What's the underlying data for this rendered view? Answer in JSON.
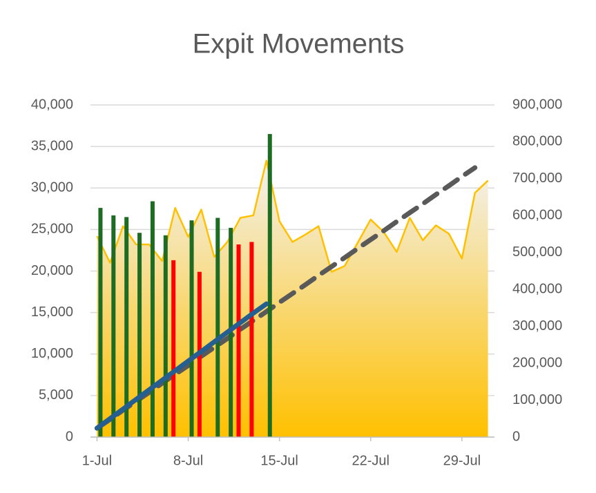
{
  "chart_data": {
    "type": "combo",
    "title": "Expit Movements",
    "x": [
      1,
      2,
      3,
      4,
      5,
      6,
      7,
      8,
      9,
      10,
      11,
      12,
      13,
      14,
      15,
      16,
      17,
      18,
      19,
      20,
      21,
      22,
      23,
      24,
      25,
      26,
      27,
      28,
      29,
      30,
      31
    ],
    "xlim": [
      0.5,
      31.5
    ],
    "xticks": [
      {
        "value": 1,
        "label": "1-Jul"
      },
      {
        "value": 8,
        "label": "8-Jul"
      },
      {
        "value": 15,
        "label": "15-Jul"
      },
      {
        "value": 22,
        "label": "22-Jul"
      },
      {
        "value": 29,
        "label": "29-Jul"
      }
    ],
    "ylim": [
      0,
      40000
    ],
    "yticks": [
      0,
      {
        "value": 5000,
        "label": "5,000"
      },
      {
        "value": 10000,
        "label": "10,000"
      },
      {
        "value": 15000,
        "label": "15,000"
      },
      {
        "value": 20000,
        "label": "20,000"
      },
      {
        "value": 25000,
        "label": "25,000"
      },
      {
        "value": 30000,
        "label": "30,000"
      },
      {
        "value": 35000,
        "label": "35,000"
      },
      {
        "value": 40000,
        "label": "40,000"
      }
    ],
    "y2lim": [
      0,
      900000
    ],
    "y2ticks": [
      0,
      {
        "value": 100000,
        "label": "100,000"
      },
      {
        "value": 200000,
        "label": "200,000"
      },
      {
        "value": 300000,
        "label": "300,000"
      },
      {
        "value": 400000,
        "label": "400,000"
      },
      {
        "value": 500000,
        "label": "500,000"
      },
      {
        "value": 600000,
        "label": "600,000"
      },
      {
        "value": 700000,
        "label": "700,000"
      },
      {
        "value": 800000,
        "label": "800,000"
      },
      {
        "value": 900000,
        "label": "900,000"
      }
    ],
    "grid": true,
    "series": [
      {
        "type": "area",
        "color": "#FFC000",
        "values": [
          24200,
          21000,
          25400,
          23200,
          23200,
          21200,
          27600,
          24100,
          27400,
          21700,
          23500,
          26400,
          26700,
          33300,
          26000,
          23500,
          24400,
          25400,
          19900,
          20600,
          23400,
          26200,
          24700,
          22300,
          26400,
          23700,
          25500,
          24500,
          21500,
          29400,
          30900
        ]
      },
      {
        "type": "bar",
        "color": "#1E6B24",
        "values": [
          27600,
          26700,
          26500,
          24600,
          28400,
          24300,
          null,
          26100,
          null,
          26400,
          25200,
          null,
          null,
          36500,
          null,
          null,
          null,
          null,
          null,
          null,
          null,
          null,
          null,
          null,
          null,
          null,
          null,
          null,
          null,
          null,
          null
        ]
      },
      {
        "type": "bar",
        "color": "#FF0000",
        "values": [
          null,
          null,
          null,
          null,
          null,
          null,
          21300,
          null,
          19900,
          null,
          null,
          23200,
          23500,
          null,
          null,
          null,
          null,
          null,
          null,
          null,
          null,
          null,
          null,
          null,
          null,
          null,
          null,
          null,
          null,
          null,
          null
        ]
      },
      {
        "type": "line",
        "axis": "y2",
        "color": "#255E91",
        "values": [
          24000,
          50000,
          76000,
          102000,
          128000,
          154000,
          180000,
          206000,
          232000,
          258000,
          284000,
          310000,
          336000,
          361000,
          null,
          null,
          null,
          null,
          null,
          null,
          null,
          null,
          null,
          null,
          null,
          null,
          null,
          null,
          null,
          null,
          null
        ]
      },
      {
        "type": "dashed",
        "axis": "y2",
        "color": "#595959",
        "values": [
          24000,
          48000,
          73000,
          97000,
          121000,
          146000,
          170000,
          194000,
          219000,
          243000,
          267000,
          292000,
          316000,
          340000,
          365000,
          389000,
          413000,
          438000,
          462000,
          486000,
          511000,
          535000,
          559000,
          584000,
          608000,
          632000,
          657000,
          681000,
          706000,
          730000,
          null
        ]
      }
    ]
  }
}
